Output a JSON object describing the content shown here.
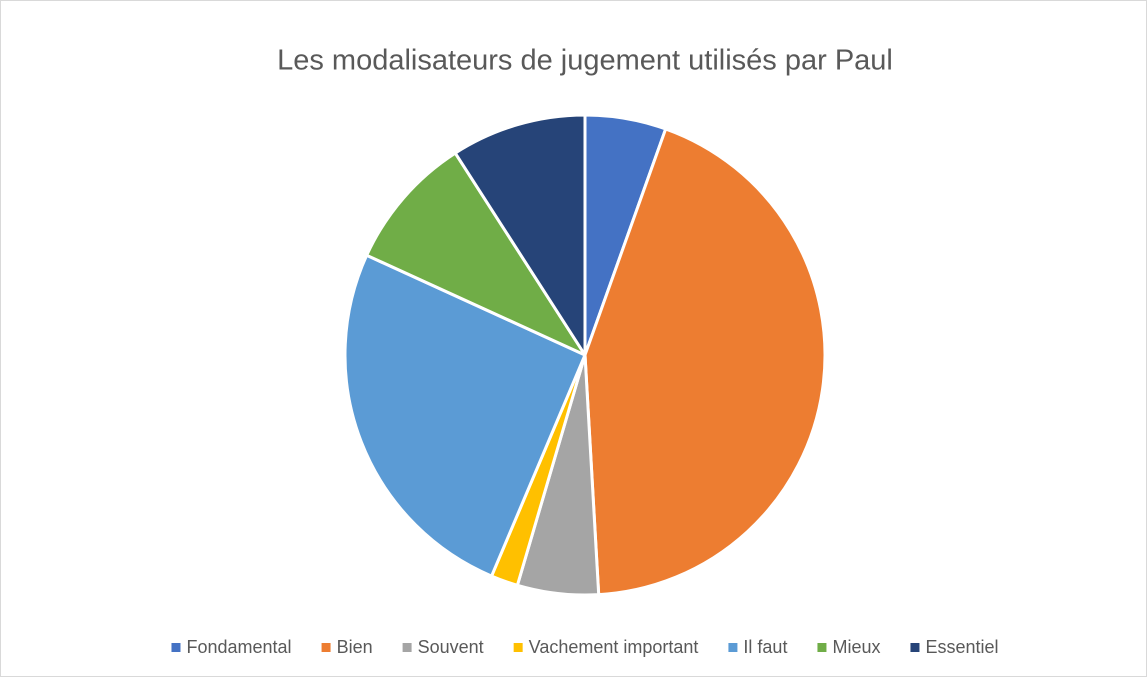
{
  "chart_data": {
    "type": "pie",
    "title": "Les modalisateurs de jugement utilisés par Paul",
    "categories": [
      "Fondamental",
      "Bien",
      "Souvent",
      "Vachement important",
      "Il faut",
      "Mieux",
      "Essentiel"
    ],
    "values": [
      3,
      24,
      3,
      1,
      14,
      5,
      5
    ],
    "colors": [
      "#4472c4",
      "#ed7d31",
      "#a5a5a5",
      "#ffc000",
      "#5b9bd5",
      "#70ad47",
      "#264478"
    ],
    "legend": "bottom"
  }
}
